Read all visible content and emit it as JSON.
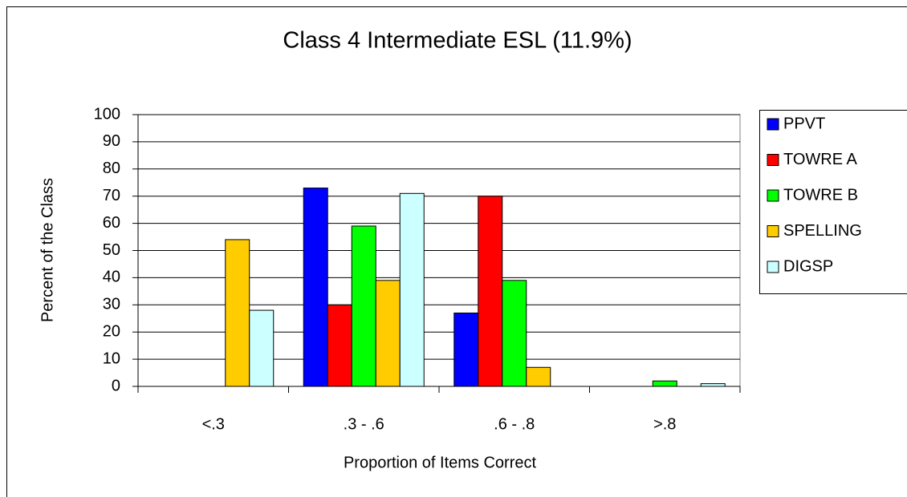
{
  "chart_data": {
    "type": "bar",
    "title": "Class 4 Intermediate ESL (11.9%)",
    "y_label": "Percent of the Class",
    "x_label": "Proportion of Items Correct",
    "categories": [
      "<.3",
      ".3 - .6",
      ".6 - .8",
      ">.8"
    ],
    "series": [
      {
        "name": "PPVT",
        "color": "#0000ff",
        "values": [
          0,
          73,
          27,
          0
        ]
      },
      {
        "name": "TOWRE A",
        "color": "#ff0000",
        "values": [
          0,
          30,
          70,
          0
        ]
      },
      {
        "name": "TOWRE B",
        "color": "#00ff00",
        "values": [
          0,
          59,
          39,
          2
        ]
      },
      {
        "name": "SPELLING",
        "color": "#ffcc00",
        "values": [
          54,
          39,
          7,
          0
        ]
      },
      {
        "name": "DIGSP",
        "color": "#ccffff",
        "values": [
          28,
          71,
          0,
          1
        ]
      }
    ],
    "ylim": [
      0,
      100
    ],
    "yticks": [
      0,
      10,
      20,
      30,
      40,
      50,
      60,
      70,
      80,
      90,
      100
    ],
    "grid": true,
    "legend": "right"
  }
}
